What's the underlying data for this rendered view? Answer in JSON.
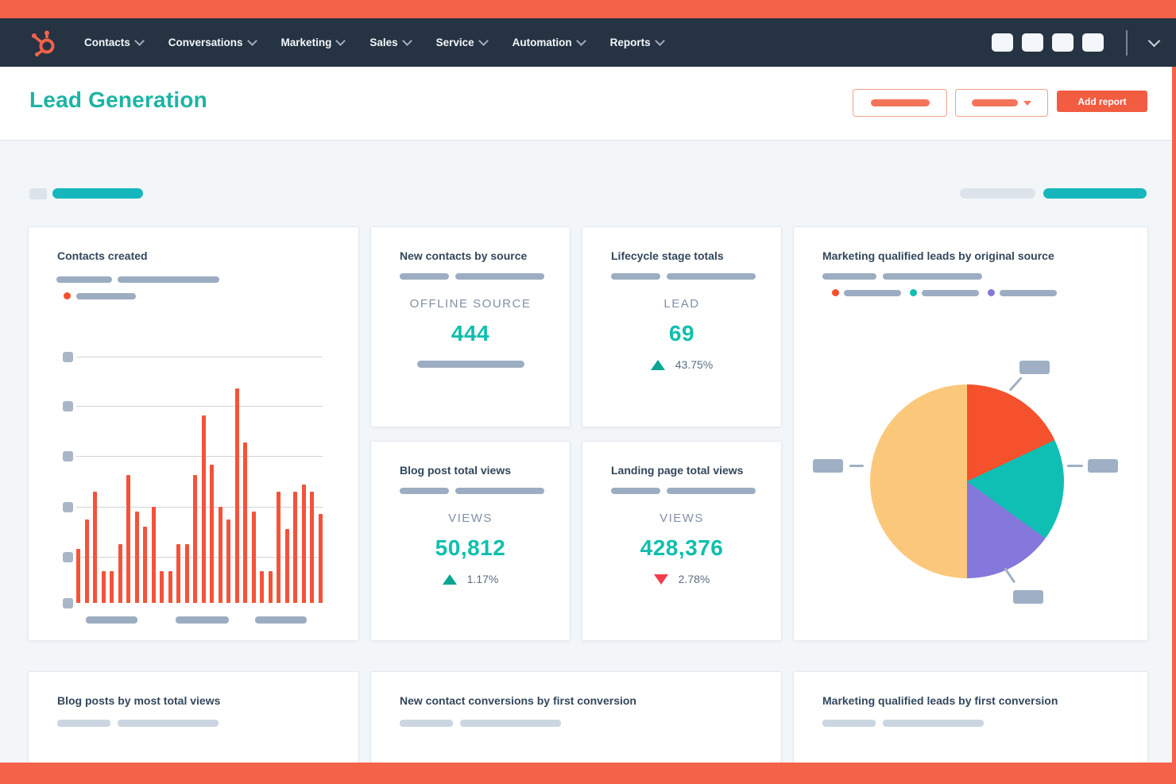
{
  "page": {
    "bg": "#f2f6f9",
    "accent_orange": "#f4624a",
    "teal_heading": "#1cb4a3",
    "teal_value": "#0fbfad",
    "navy": "#33475b"
  },
  "nav": {
    "logo": "hubspot-sprocket",
    "items": [
      {
        "label": "Contacts"
      },
      {
        "label": "Conversations"
      },
      {
        "label": "Marketing"
      },
      {
        "label": "Sales"
      },
      {
        "label": "Service"
      },
      {
        "label": "Automation"
      },
      {
        "label": "Reports"
      }
    ],
    "icon_placeholder_count": 4
  },
  "header": {
    "title": "Lead Generation",
    "add_report_label": "Add report"
  },
  "cards": {
    "contacts_created": {
      "title": "Contacts created"
    },
    "new_contacts_by_source": {
      "title": "New contacts by source",
      "metric_label": "OFFLINE SOURCE",
      "value": "444"
    },
    "lifecycle_stage_totals": {
      "title": "Lifecycle stage totals",
      "metric_label": "LEAD",
      "value": "69",
      "delta": "43.75%",
      "delta_direction": "up"
    },
    "mql_by_original_source": {
      "title": "Marketing qualified leads by original source"
    },
    "blog_post_total_views": {
      "title": "Blog post total views",
      "metric_label": "VIEWS",
      "value": "50,812",
      "delta": "1.17%",
      "delta_direction": "up"
    },
    "landing_page_total_views": {
      "title": "Landing page total views",
      "metric_label": "VIEWS",
      "value": "428,376",
      "delta": "2.78%",
      "delta_direction": "down"
    },
    "blog_posts_by_most_total_views": {
      "title": "Blog posts by most total views"
    },
    "new_contact_conversions_by_first_conversion": {
      "title": "New contact conversions by first conversion"
    },
    "mql_by_first_conversion": {
      "title": "Marketing qualified leads by first conversion"
    }
  },
  "chart_data": [
    {
      "type": "bar",
      "title": "Contacts created",
      "bar_color": "#f4533a",
      "grid": true,
      "note": "axis tick labels and x labels are skeleton placeholders",
      "ylim": [
        0,
        100
      ],
      "series": [
        {
          "name": "contacts",
          "values": [
            22,
            34,
            45,
            13,
            13,
            24,
            52,
            37,
            31,
            39,
            13,
            13,
            24,
            24,
            52,
            76,
            56,
            39,
            34,
            87,
            65,
            37,
            13,
            13,
            45,
            30,
            45,
            48,
            45,
            36
          ]
        }
      ]
    },
    {
      "type": "pie",
      "title": "Marketing qualified leads by original source",
      "legend_position": "top (placeholder pills with colored dots)",
      "slices": [
        {
          "label": "segment-1",
          "pct": 18,
          "color": "#f4512c"
        },
        {
          "label": "segment-2",
          "pct": 17,
          "color": "#0fbfb4"
        },
        {
          "label": "segment-3",
          "pct": 15,
          "color": "#8478dc"
        },
        {
          "label": "segment-4",
          "pct": 50,
          "color": "#fbc87b"
        }
      ]
    }
  ]
}
